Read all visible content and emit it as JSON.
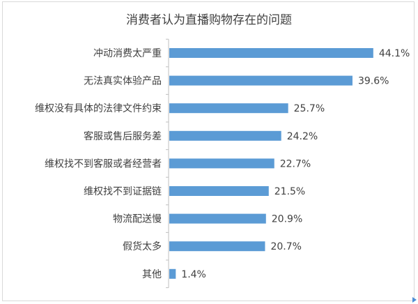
{
  "chart_data": {
    "type": "bar",
    "orientation": "horizontal",
    "title": "消费者认为直播购物存在的问题",
    "categories": [
      "冲动消费太严重",
      "无法真实体验产品",
      "维权没有具体的法律文件约束",
      "客服或售后服务差",
      "维权找不到客服或者经营者",
      "维权找不到证据链",
      "物流配送慢",
      "假货太多",
      "其他"
    ],
    "values": [
      44.1,
      39.6,
      25.7,
      24.2,
      22.7,
      21.5,
      20.9,
      20.7,
      1.4
    ],
    "value_labels": [
      "44.1%",
      "39.6%",
      "25.7%",
      "24.2%",
      "22.7%",
      "21.5%",
      "20.9%",
      "20.7%",
      "1.4%"
    ],
    "xlim": [
      0,
      50
    ],
    "grid": false,
    "legend": "none",
    "bar_color": "#5b9bd5",
    "axis_color": "#bfbfbf"
  }
}
